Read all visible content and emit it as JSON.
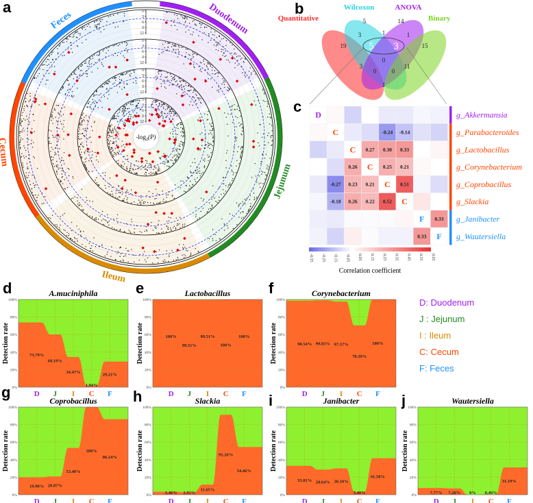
{
  "panel_letters": {
    "a": "a",
    "b": "b",
    "c": "c",
    "d": "d",
    "e": "e",
    "f": "f",
    "g": "g",
    "h": "h",
    "i": "i",
    "j": "j"
  },
  "colors": {
    "duodenum": "#a020f0",
    "jejunum": "#228b22",
    "ileum": "#d98a00",
    "cecum": "#ff4500",
    "feces": "#1e90ff",
    "detected": "#ff6a2a",
    "undetected": "#8ef02e",
    "neg": "#6b6be6",
    "pos": "#ea3a3a"
  },
  "chart_data": [
    {
      "type": "scatter",
      "name": "circular-manhattan",
      "center_label": "-log",
      "center_label_sub": "2",
      "center_label_tail": "(P)",
      "sectors": [
        {
          "label": "Duodenum",
          "color": "#a020f0",
          "bg": "#f1ebfa"
        },
        {
          "label": "Jejunum",
          "color": "#228b22",
          "bg": "#eaf7ea"
        },
        {
          "label": "Ileum",
          "color": "#d98a00",
          "bg": "#fbf3e6"
        },
        {
          "label": "Cecum",
          "color": "#ff4500",
          "bg": "#fdf0e6"
        },
        {
          "label": "Feces",
          "color": "#1e90ff",
          "bg": "#e9f3fc"
        }
      ],
      "tracks": 4,
      "axis_ticks": [
        "0",
        "3",
        "6",
        "9",
        "12"
      ],
      "axis_range": [
        0,
        12
      ],
      "threshold_line": "dashed blue significance line"
    },
    {
      "type": "venn",
      "sets": [
        {
          "label": "Quantitative",
          "color": "#ff2a2a"
        },
        {
          "label": "Wilcoxon",
          "color": "#22d3e0"
        },
        {
          "label": "ANOVA",
          "color": "#a020f0"
        },
        {
          "label": "Binary",
          "color": "#7ed321"
        }
      ],
      "regions": [
        {
          "sets": "W",
          "value": "5"
        },
        {
          "sets": "A",
          "value": "14"
        },
        {
          "sets": "Q∩W",
          "value": "3"
        },
        {
          "sets": "W∩A",
          "value": "1"
        },
        {
          "sets": "A∩B",
          "value": "1"
        },
        {
          "sets": "Q",
          "value": "19"
        },
        {
          "sets": "B",
          "value": "15"
        },
        {
          "sets": "Q∩W∩A",
          "value": "5"
        },
        {
          "sets": "W∩A∩B",
          "value": "3"
        },
        {
          "sets": "Q∩W∩A∩B",
          "value": "0"
        },
        {
          "sets": "Q∩A",
          "value": "3"
        },
        {
          "sets": "W∩B",
          "value": "11"
        },
        {
          "sets": "Q∩A∩B",
          "value": "0"
        },
        {
          "sets": "Q∩W∩B",
          "value": "0"
        },
        {
          "sets": "Q∩B",
          "value": "1"
        }
      ]
    },
    {
      "type": "heatmap",
      "rows": [
        "g_Akkermansia",
        "g_Parabacteroides",
        "g_Lactobacillus",
        "g_Corynebacterium",
        "g_Coprobacillus",
        "g_Slackia",
        "g_Janibacter",
        "g_Wautersiella"
      ],
      "row_groups": [
        "D",
        "C",
        "C",
        "C",
        "C",
        "C",
        "F",
        "F"
      ],
      "values": [
        [
          null,
          0.02,
          -0.1,
          0.0,
          -0.05,
          -0.05,
          -0.02,
          -0.03
        ],
        [
          0.02,
          null,
          -0.05,
          -0.08,
          -0.24,
          -0.14,
          -0.07,
          -0.1
        ],
        [
          -0.1,
          -0.05,
          null,
          0.27,
          0.3,
          0.33,
          0.0,
          0.03
        ],
        [
          0.0,
          -0.08,
          0.26,
          null,
          0.25,
          0.21,
          0.02,
          0.0
        ],
        [
          -0.05,
          -0.27,
          0.23,
          0.21,
          null,
          0.51,
          -0.02,
          -0.08
        ],
        [
          -0.02,
          -0.18,
          0.26,
          0.22,
          0.52,
          null,
          0.08,
          0.0
        ],
        [
          -0.04,
          -0.05,
          -0.01,
          -0.01,
          -0.01,
          0.03,
          null,
          0.33
        ],
        [
          -0.03,
          -0.1,
          0.05,
          -0.01,
          -0.03,
          -0.03,
          0.33,
          null
        ]
      ],
      "cell_labels": [
        [
          "D",
          "",
          "",
          "",
          "",
          "",
          "",
          ""
        ],
        [
          "",
          "C",
          "",
          "",
          "-0.24",
          "-0.14",
          "",
          ""
        ],
        [
          "",
          "",
          "C",
          "0.27",
          "0.30",
          "0.33",
          "",
          ""
        ],
        [
          "",
          "",
          "0.26",
          "C",
          "0.25",
          "0.21",
          "",
          ""
        ],
        [
          "",
          "-0.27",
          "0.23",
          "0.21",
          "C",
          "0.51",
          "",
          ""
        ],
        [
          "",
          "-0.18",
          "0.26",
          "0.22",
          "0.52",
          "C",
          "",
          ""
        ],
        [
          "",
          "",
          "",
          "",
          "",
          "",
          "F",
          "0.33"
        ],
        [
          "",
          "",
          "",
          "",
          "",
          "",
          "0.33",
          "F"
        ]
      ],
      "colorbar_ticks": [
        "-0.35",
        "-0.25",
        "-0.15",
        "-0.05",
        "0.05",
        "0.15",
        "0.25",
        "0.35",
        "0.45",
        "0.55",
        "0.65"
      ],
      "colorbar_range": [
        -0.35,
        0.65
      ],
      "colorbar_label": "Correlation coefficient"
    },
    {
      "type": "area",
      "panel": "d",
      "title": "A.muciniphila",
      "categories": [
        "D",
        "J",
        "I",
        "C",
        "F"
      ],
      "values": [
        73.79,
        60.19,
        34.47,
        1.94,
        29.21
      ],
      "labels": [
        "73.79%",
        "60.19%",
        "34.47%",
        "1.94%",
        "29.21%"
      ],
      "ylabel": "Detection rate",
      "yticks": [
        "0%",
        "20%",
        "40%",
        "60%",
        "80%",
        "100%"
      ],
      "ylim": [
        0,
        100
      ]
    },
    {
      "type": "area",
      "panel": "e",
      "title": "Lactobacillus",
      "categories": [
        "D",
        "J",
        "I",
        "C",
        "F"
      ],
      "values": [
        100,
        99.51,
        99.51,
        100,
        100
      ],
      "labels": [
        "100%",
        "99.51%",
        "99.51%",
        "100%",
        "100%"
      ],
      "ylabel": "Detection rate",
      "yticks": [
        "0%",
        "20%",
        "40%",
        "60%",
        "80%",
        "100%"
      ],
      "ylim": [
        0,
        100
      ]
    },
    {
      "type": "area",
      "panel": "f",
      "title": "Corynebacterium",
      "categories": [
        "D",
        "J",
        "I",
        "C",
        "F"
      ],
      "values": [
        98.54,
        99.03,
        97.57,
        70.39,
        100
      ],
      "labels": [
        "98.54%",
        "99.03%",
        "97.57%",
        "70.39%",
        "100%"
      ],
      "ylabel": "Detection rate",
      "yticks": [
        "0%",
        "20%",
        "40%",
        "60%",
        "80%",
        "100%"
      ],
      "ylim": [
        0,
        100
      ]
    },
    {
      "type": "area",
      "panel": "g",
      "title": "Coprobacillus",
      "categories": [
        "D",
        "J",
        "I",
        "C",
        "F"
      ],
      "values": [
        19.9,
        20.87,
        53.4,
        100,
        86.14
      ],
      "labels": [
        "19.90%",
        "20.87%",
        "53.40%",
        "100%",
        "86.14%"
      ],
      "ylabel": "Detection rate",
      "yticks": [
        "0%",
        "20%",
        "40%",
        "60%",
        "80%",
        "100%"
      ],
      "ylim": [
        0,
        100
      ]
    },
    {
      "type": "area",
      "panel": "h",
      "title": "Slackia",
      "categories": [
        "D",
        "J",
        "I",
        "C",
        "F"
      ],
      "values": [
        3.4,
        2.91,
        11.65,
        91.26,
        54.46
      ],
      "labels": [
        "3.40%",
        "2.91%",
        "11.65%",
        "91.26%",
        "54.46%"
      ],
      "ylabel": "Detection rate",
      "yticks": [
        "0%",
        "20%",
        "40%",
        "60%",
        "80%",
        "100%"
      ],
      "ylim": [
        0,
        100
      ]
    },
    {
      "type": "area",
      "panel": "i",
      "title": "Janibacter",
      "categories": [
        "D",
        "J",
        "I",
        "C",
        "F"
      ],
      "values": [
        33.01,
        28.64,
        30.1,
        3.4,
        41.58
      ],
      "labels": [
        "33.01%",
        "28.64%",
        "30.10%",
        "3.40%",
        "41.58%"
      ],
      "ylabel": "Detection rate",
      "yticks": [
        "0%",
        "20%",
        "40%",
        "60%",
        "80%",
        "100%"
      ],
      "ylim": [
        0,
        100
      ]
    },
    {
      "type": "area",
      "panel": "j",
      "title": "Wautersiella",
      "categories": [
        "D",
        "J",
        "I",
        "C",
        "F"
      ],
      "values": [
        7.77,
        7.28,
        0,
        0.49,
        31.19
      ],
      "labels": [
        "7.77%",
        "7.28%",
        "0%",
        "0.49%",
        "31.19%"
      ],
      "ylabel": "Detection rate",
      "yticks": [
        "0%",
        "20%",
        "40%",
        "60%",
        "80%",
        "100%"
      ],
      "ylim": [
        0,
        100
      ]
    }
  ],
  "legend": [
    {
      "text": "D: Duodenum",
      "color": "#a020f0"
    },
    {
      "text": "J : Jejunum",
      "color": "#228b22"
    },
    {
      "text": "I : Ileum",
      "color": "#d98a00"
    },
    {
      "text": "C: Cecum",
      "color": "#ff4500"
    },
    {
      "text": "F: Feces",
      "color": "#1e90ff"
    }
  ]
}
